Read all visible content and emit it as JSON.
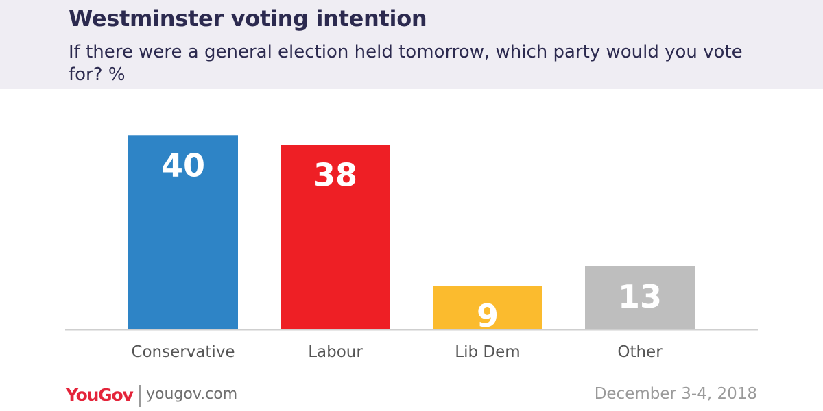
{
  "header": {
    "title": "Westminster voting intention",
    "subtitle": "If there were a general election held tomorrow, which party would you vote for? %"
  },
  "chart_data": {
    "type": "bar",
    "categories": [
      "Conservative",
      "Labour",
      "Lib Dem",
      "Other"
    ],
    "values": [
      40,
      38,
      9,
      13
    ],
    "colors": [
      "#2e84c6",
      "#ee1f25",
      "#fbbb2e",
      "#bebebe"
    ],
    "data_labels": [
      "40",
      "38",
      "9",
      "13"
    ],
    "title": "Westminster voting intention",
    "subtitle": "If there were a general election held tomorrow, which party would you vote for? %",
    "ylim": [
      0,
      43
    ],
    "grid": false,
    "legend": "none"
  },
  "footer": {
    "brand": "YouGov",
    "site": "yougov.com",
    "date": "December 3-4, 2018"
  }
}
